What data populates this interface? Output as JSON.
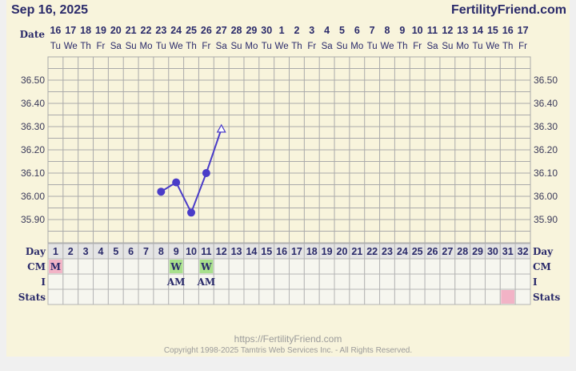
{
  "header": {
    "date": "Sep 16, 2025",
    "site": "FertilityFriend.com"
  },
  "row_labels": {
    "date": "Date",
    "day": "Day",
    "cm": "CM",
    "i": "I",
    "stats": "Stats"
  },
  "dates": [
    "16",
    "17",
    "18",
    "19",
    "20",
    "21",
    "22",
    "23",
    "24",
    "25",
    "26",
    "27",
    "28",
    "29",
    "30",
    "1",
    "2",
    "3",
    "4",
    "5",
    "6",
    "7",
    "8",
    "9",
    "10",
    "11",
    "12",
    "13",
    "14",
    "15",
    "16",
    "17"
  ],
  "weekdays": [
    "Tu",
    "We",
    "Th",
    "Fr",
    "Sa",
    "Su",
    "Mo",
    "Tu",
    "We",
    "Th",
    "Fr",
    "Sa",
    "Su",
    "Mo",
    "Tu",
    "We",
    "Th",
    "Fr",
    "Sa",
    "Su",
    "Mo",
    "Tu",
    "We",
    "Th",
    "Fr",
    "Sa",
    "Su",
    "Mo",
    "Tu",
    "We",
    "Th",
    "Fr"
  ],
  "chart_data": {
    "type": "line",
    "ylim": [
      35.8,
      36.6
    ],
    "yticks": [
      "36.50",
      "36.40",
      "36.30",
      "36.20",
      "36.10",
      "36.00",
      "35.90"
    ],
    "x_days": [
      1,
      32
    ],
    "points": [
      {
        "day": 8,
        "temp": 36.02,
        "marker": "filled"
      },
      {
        "day": 9,
        "temp": 36.06,
        "marker": "filled"
      },
      {
        "day": 10,
        "temp": 35.93,
        "marker": "filled"
      },
      {
        "day": 11,
        "temp": 36.1,
        "marker": "filled"
      },
      {
        "day": 12,
        "temp": 36.29,
        "marker": "open-triangle"
      }
    ],
    "line_color": "#4a3cc8",
    "grid": true
  },
  "cm": [
    {
      "day": 1,
      "value": "M",
      "color": "#f2b3c6"
    },
    {
      "day": 9,
      "value": "W",
      "color": "#a8e08c"
    },
    {
      "day": 11,
      "value": "W",
      "color": "#a8e08c"
    }
  ],
  "intercourse": [
    {
      "day": 9,
      "value": "AM"
    },
    {
      "day": 11,
      "value": "AM"
    }
  ],
  "stats": [
    {
      "day": 31,
      "color": "#f2b3c6"
    }
  ],
  "footer": {
    "url": "https://FertilityFriend.com",
    "copyright": "Copyright 1998-2025 Tamtris Web Services Inc. - All Rights Reserved."
  }
}
